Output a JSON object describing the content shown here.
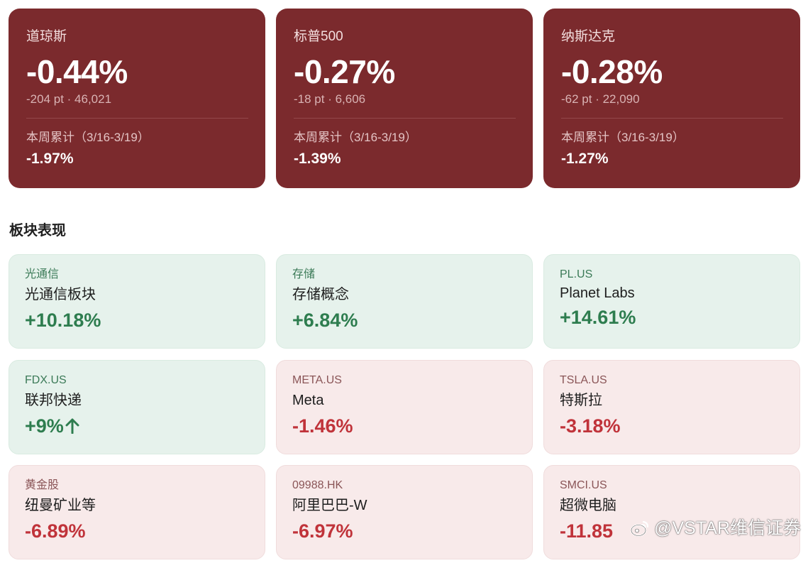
{
  "indices": [
    {
      "name": "道琼斯",
      "change": "-0.44%",
      "detail": "-204 pt · 46,021",
      "week_label": "本周累计（3/16-3/19）",
      "week_value": "-1.97%"
    },
    {
      "name": "标普500",
      "change": "-0.27%",
      "detail": "-18 pt · 6,606",
      "week_label": "本周累计（3/16-3/19）",
      "week_value": "-1.39%"
    },
    {
      "name": "纳斯达克",
      "change": "-0.28%",
      "detail": "-62 pt · 22,090",
      "week_label": "本周累计（3/16-3/19）",
      "week_value": "-1.27%"
    }
  ],
  "section_title": "板块表现",
  "sectors": [
    {
      "code": "光通信",
      "name": "光通信板块",
      "change": "+10.18%",
      "direction": "up"
    },
    {
      "code": "存储",
      "name": "存储概念",
      "change": "+6.84%",
      "direction": "up"
    },
    {
      "code": "PL.US",
      "name": "Planet Labs",
      "change": "+14.61%",
      "direction": "up"
    },
    {
      "code": "FDX.US",
      "name": "联邦快递",
      "change": "+9%",
      "direction": "up",
      "icon": "arrow-up-icon"
    },
    {
      "code": "META.US",
      "name": "Meta",
      "change": "-1.46%",
      "direction": "down"
    },
    {
      "code": "TSLA.US",
      "name": "特斯拉",
      "change": "-3.18%",
      "direction": "down"
    },
    {
      "code": "黄金股",
      "name": "纽曼矿业等",
      "change": "-6.89%",
      "direction": "down"
    },
    {
      "code": "09988.HK",
      "name": "阿里巴巴-W",
      "change": "-6.97%",
      "direction": "down"
    },
    {
      "code": "SMCI.US",
      "name": "超微电脑",
      "change": "-11.85",
      "direction": "down"
    }
  ],
  "watermark": {
    "text": "@VSTAR维信证券",
    "icon": "weibo-logo-icon"
  },
  "colors": {
    "index_bg": "#7b2a2d",
    "up": "#2e7d4f",
    "down": "#c0333a"
  }
}
